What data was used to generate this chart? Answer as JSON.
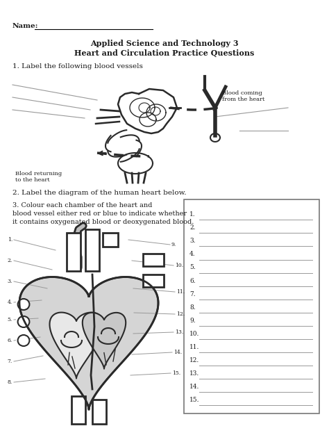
{
  "title_line1": "Applied Science and Technology 3",
  "title_line2": "Heart and Circulation Practice Questions",
  "name_label": "Name:",
  "q1_text": "1. Label the following blood vessels",
  "q2_text": "2. Label the diagram of the human heart below.",
  "q3_line1": "3. Colour each chamber of the heart and",
  "q3_line2": "blood vessel either red or blue to indicate whether",
  "q3_line3": "it contains oxygenated blood or deoxygenated blood.",
  "blood_coming_text": "Blood coming\nfrom the heart",
  "blood_returning_text": "Blood returning\nto the heart",
  "numbered_items": 15,
  "bg_color": "#ffffff",
  "text_color": "#1a1a1a",
  "gray_line_color": "#999999",
  "dark_color": "#2a2a2a",
  "box_border_color": "#777777",
  "heart_fill": "#cccccc",
  "heart_inner_fill": "#bbbbbb"
}
